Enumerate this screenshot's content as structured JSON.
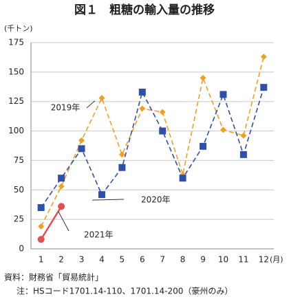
{
  "chart_data": {
    "type": "line",
    "title": "図１　粗糖の輸入量の推移",
    "y_unit": "(千トン)",
    "x_unit": "(月)",
    "categories": [
      "1",
      "2",
      "3",
      "4",
      "5",
      "6",
      "7",
      "8",
      "9",
      "10",
      "11",
      "12"
    ],
    "series": [
      {
        "name": "2019年",
        "color": "#f0a020",
        "marker": "diamond",
        "dash": true,
        "values": [
          19,
          53,
          92,
          128,
          80,
          119,
          116,
          63,
          145,
          101,
          96,
          163
        ]
      },
      {
        "name": "2020年",
        "color": "#2f4fa8",
        "marker": "square",
        "dash": true,
        "values": [
          35,
          60,
          85,
          46,
          69,
          133,
          100,
          60,
          87,
          131,
          80,
          137
        ]
      },
      {
        "name": "2021年",
        "color": "#e05050",
        "marker": "circle",
        "dash": false,
        "values": [
          8,
          36,
          null,
          null,
          null,
          null,
          null,
          null,
          null,
          null,
          null,
          null
        ]
      }
    ],
    "ylim": [
      0,
      175
    ],
    "yticks": [
      0,
      25,
      50,
      75,
      100,
      125,
      150,
      175
    ],
    "grid": true,
    "notes": [
      "資料：財務省「貿易統計」",
      "注：HSコード1701.14-110、1701.14-200（豪州のみ）"
    ]
  }
}
